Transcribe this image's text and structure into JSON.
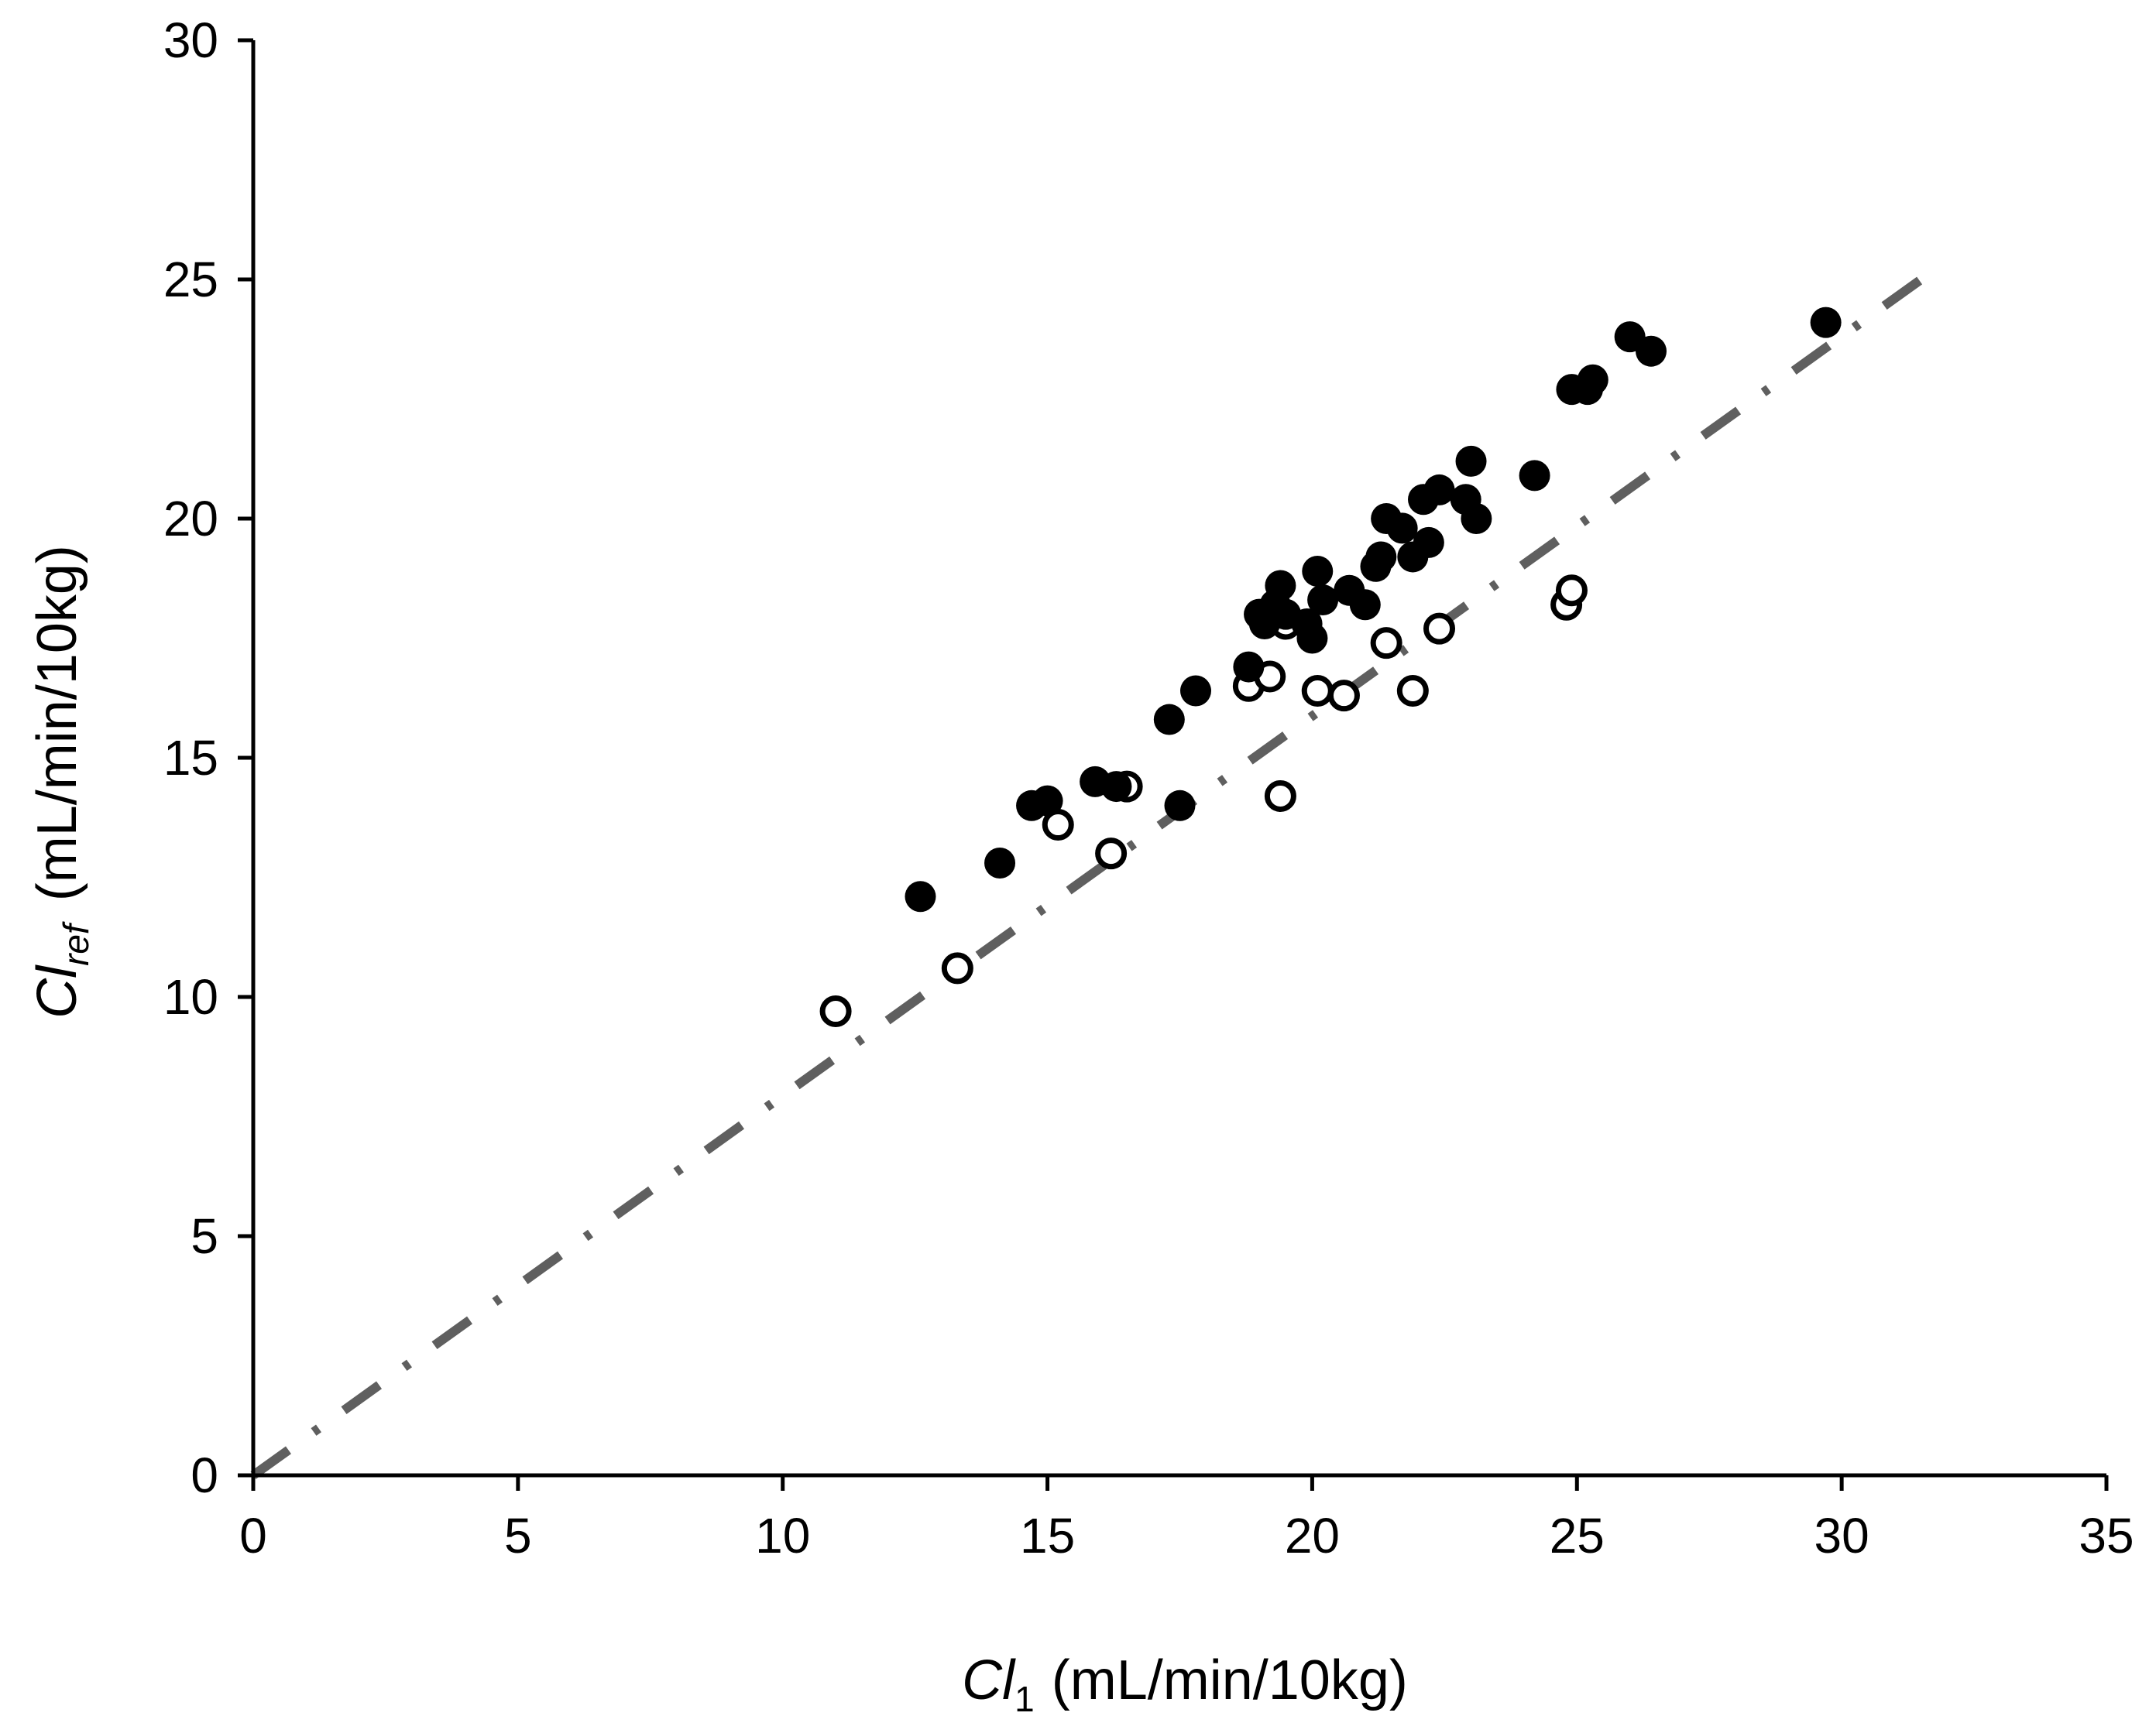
{
  "chart_data": {
    "type": "scatter",
    "title": "",
    "xlabel": {
      "main": "Cl",
      "sub": "1",
      "units": "(mL/min/10kg)"
    },
    "ylabel": {
      "main": "Cl",
      "sub": "ref",
      "units": "(mL/min/10kg)"
    },
    "xlim": [
      0,
      35
    ],
    "ylim": [
      0,
      30
    ],
    "x_ticks": [
      0,
      5,
      10,
      15,
      20,
      25,
      30,
      35
    ],
    "y_ticks": [
      0,
      5,
      10,
      15,
      20,
      25,
      30
    ],
    "x_tick_labels": [
      "0",
      "5",
      "10",
      "15",
      "20",
      "25",
      "30",
      "35"
    ],
    "y_tick_labels": [
      "0",
      "5",
      "10",
      "15",
      "20",
      "25",
      "30"
    ],
    "grid": false,
    "legend": null,
    "colors": {
      "filled": "#000000",
      "reference_line": "#5f5f5f"
    },
    "reference_line": {
      "name": "line of identity",
      "style": "dash-dot",
      "x": [
        0,
        31.5
      ],
      "y": [
        0,
        25
      ]
    },
    "series": [
      {
        "name": "filled",
        "marker": "filled-circle",
        "points": [
          [
            12.6,
            12.1
          ],
          [
            14.1,
            12.8
          ],
          [
            14.7,
            14.0
          ],
          [
            15.0,
            14.1
          ],
          [
            15.9,
            14.5
          ],
          [
            16.3,
            14.4
          ],
          [
            17.5,
            14.0
          ],
          [
            17.3,
            15.8
          ],
          [
            17.8,
            16.4
          ],
          [
            18.8,
            16.9
          ],
          [
            19.0,
            18.0
          ],
          [
            19.1,
            17.8
          ],
          [
            19.3,
            18.2
          ],
          [
            19.4,
            18.6
          ],
          [
            19.5,
            18.0
          ],
          [
            19.9,
            17.8
          ],
          [
            20.0,
            17.5
          ],
          [
            20.1,
            18.9
          ],
          [
            20.2,
            18.3
          ],
          [
            20.7,
            18.5
          ],
          [
            21.0,
            18.2
          ],
          [
            21.2,
            19.0
          ],
          [
            21.3,
            19.2
          ],
          [
            21.4,
            20.0
          ],
          [
            21.7,
            19.8
          ],
          [
            21.9,
            19.2
          ],
          [
            22.1,
            20.4
          ],
          [
            22.2,
            19.5
          ],
          [
            22.4,
            20.6
          ],
          [
            22.9,
            20.4
          ],
          [
            23.0,
            21.2
          ],
          [
            23.1,
            20.0
          ],
          [
            24.2,
            20.9
          ],
          [
            24.9,
            22.7
          ],
          [
            25.2,
            22.7
          ],
          [
            25.3,
            22.9
          ],
          [
            26.0,
            23.8
          ],
          [
            26.4,
            23.5
          ],
          [
            29.7,
            24.1
          ]
        ]
      },
      {
        "name": "open",
        "marker": "open-circle",
        "points": [
          [
            11.0,
            9.7
          ],
          [
            13.3,
            10.6
          ],
          [
            15.2,
            13.6
          ],
          [
            16.2,
            13.0
          ],
          [
            16.5,
            14.4
          ],
          [
            18.8,
            16.5
          ],
          [
            19.2,
            16.7
          ],
          [
            19.4,
            14.2
          ],
          [
            19.5,
            17.8
          ],
          [
            20.1,
            16.4
          ],
          [
            20.6,
            16.3
          ],
          [
            21.4,
            17.4
          ],
          [
            21.9,
            16.4
          ],
          [
            22.4,
            17.7
          ],
          [
            24.8,
            18.2
          ],
          [
            24.9,
            18.5
          ]
        ]
      }
    ]
  }
}
